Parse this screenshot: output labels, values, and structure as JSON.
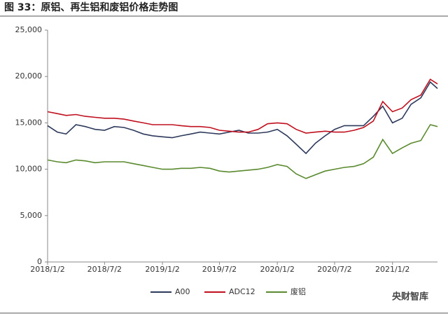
{
  "chart_data": {
    "type": "line",
    "title": "图 33：原铝、再生铝和废铝价格走势图",
    "watermark": "央财智库",
    "x": [
      "2018/1/2",
      "2018/2/2",
      "2018/3/2",
      "2018/4/2",
      "2018/5/2",
      "2018/6/2",
      "2018/7/2",
      "2018/8/2",
      "2018/9/2",
      "2018/10/2",
      "2018/11/2",
      "2018/12/2",
      "2019/1/2",
      "2019/2/2",
      "2019/3/2",
      "2019/4/2",
      "2019/5/2",
      "2019/6/2",
      "2019/7/2",
      "2019/8/2",
      "2019/9/2",
      "2019/10/2",
      "2019/11/2",
      "2019/12/2",
      "2020/1/2",
      "2020/2/2",
      "2020/3/2",
      "2020/4/2",
      "2020/5/2",
      "2020/6/2",
      "2020/7/2",
      "2020/8/2",
      "2020/9/2",
      "2020/10/2",
      "2020/11/2",
      "2020/12/2",
      "2021/1/2",
      "2021/2/2",
      "2021/3/2",
      "2021/4/2",
      "2021/5/2",
      "2021/5/25"
    ],
    "series": [
      {
        "name": "A00",
        "color": "#2e3a5c",
        "values": [
          14700,
          14000,
          13800,
          14800,
          14600,
          14300,
          14200,
          14600,
          14500,
          14200,
          13800,
          13600,
          13500,
          13400,
          13600,
          13800,
          14000,
          13900,
          13800,
          14000,
          14200,
          13900,
          13900,
          14000,
          14300,
          13600,
          12700,
          11700,
          12800,
          13600,
          14300,
          14700,
          14700,
          14700,
          15700,
          16800,
          15000,
          15500,
          17000,
          17700,
          19400,
          18700
        ]
      },
      {
        "name": "ADC12",
        "color": "#c0101e",
        "values": [
          16200,
          16000,
          15800,
          15900,
          15700,
          15600,
          15500,
          15500,
          15400,
          15200,
          15000,
          14800,
          14800,
          14800,
          14700,
          14600,
          14600,
          14500,
          14200,
          14100,
          14000,
          14000,
          14300,
          14900,
          15000,
          14900,
          14300,
          13900,
          14000,
          14100,
          14000,
          14000,
          14200,
          14500,
          15200,
          17300,
          16200,
          16600,
          17500,
          18000,
          19700,
          19200
        ]
      },
      {
        "name": "废铝",
        "color": "#5a8a2e",
        "values": [
          11000,
          10800,
          10700,
          11000,
          10900,
          10700,
          10800,
          10800,
          10800,
          10600,
          10400,
          10200,
          10000,
          10000,
          10100,
          10100,
          10200,
          10100,
          9800,
          9700,
          9800,
          9900,
          10000,
          10200,
          10500,
          10300,
          9500,
          9000,
          9400,
          9800,
          10000,
          10200,
          10300,
          10600,
          11300,
          13200,
          11700,
          12300,
          12800,
          13100,
          14800,
          14600
        ]
      }
    ],
    "xlim": [
      "2018/1/2",
      "2021/5/25"
    ],
    "xticks": [
      "2018/1/2",
      "2018/7/2",
      "2019/1/2",
      "2019/7/2",
      "2020/1/2",
      "2020/7/2",
      "2021/1/2"
    ],
    "ylim": [
      0,
      25000
    ],
    "yticks": [
      0,
      {
        "value": 5000,
        "label": "5,000"
      },
      {
        "value": 10000,
        "label": "10,000"
      },
      {
        "value": 15000,
        "label": "15,000"
      },
      {
        "value": 20000,
        "label": "20,000"
      },
      {
        "value": 25000,
        "label": "25,000"
      }
    ]
  }
}
